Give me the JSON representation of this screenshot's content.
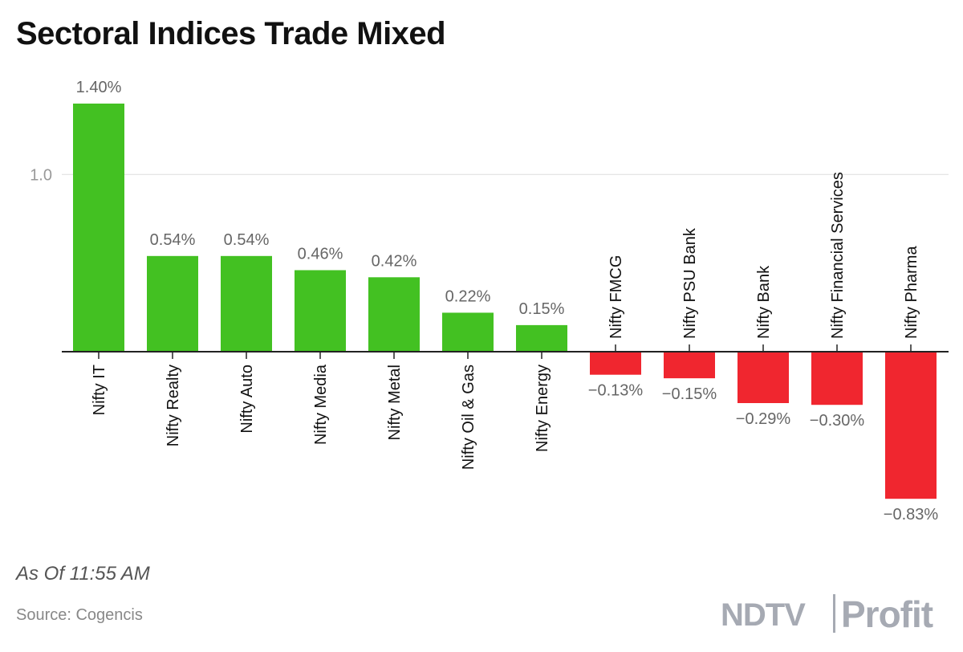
{
  "title": "Sectoral Indices Trade Mixed",
  "note": "As Of 11:55 AM",
  "source": "Source: Cogencis",
  "brand": {
    "left": "NDTV",
    "right": "Profit"
  },
  "colors": {
    "positive": "#43c122",
    "negative": "#f0262f",
    "gridline": "#dddddd",
    "axis": "#222222",
    "label": "#666666"
  },
  "chart_data": {
    "type": "bar",
    "categories": [
      "Nifty IT",
      "Nifty Realty",
      "Nifty Auto",
      "Nifty Media",
      "Nifty Metal",
      "Nifty Oil & Gas",
      "Nifty Energy",
      "Nifty FMCG",
      "Nifty PSU Bank",
      "Nifty Bank",
      "Nifty Financial Services",
      "Nifty Pharma"
    ],
    "values": [
      1.4,
      0.54,
      0.54,
      0.46,
      0.42,
      0.22,
      0.15,
      -0.13,
      -0.15,
      -0.29,
      -0.3,
      -0.83
    ],
    "data_labels": [
      "1.40%",
      "0.54%",
      "0.54%",
      "0.46%",
      "0.42%",
      "0.22%",
      "0.15%",
      "−0.13%",
      "−0.15%",
      "−0.29%",
      "−0.30%",
      "−0.83%"
    ],
    "yticks": [
      1.0
    ],
    "ytick_labels": [
      "1.0"
    ],
    "ylim": [
      -0.83,
      1.4
    ],
    "grid": true,
    "legend": "none"
  }
}
